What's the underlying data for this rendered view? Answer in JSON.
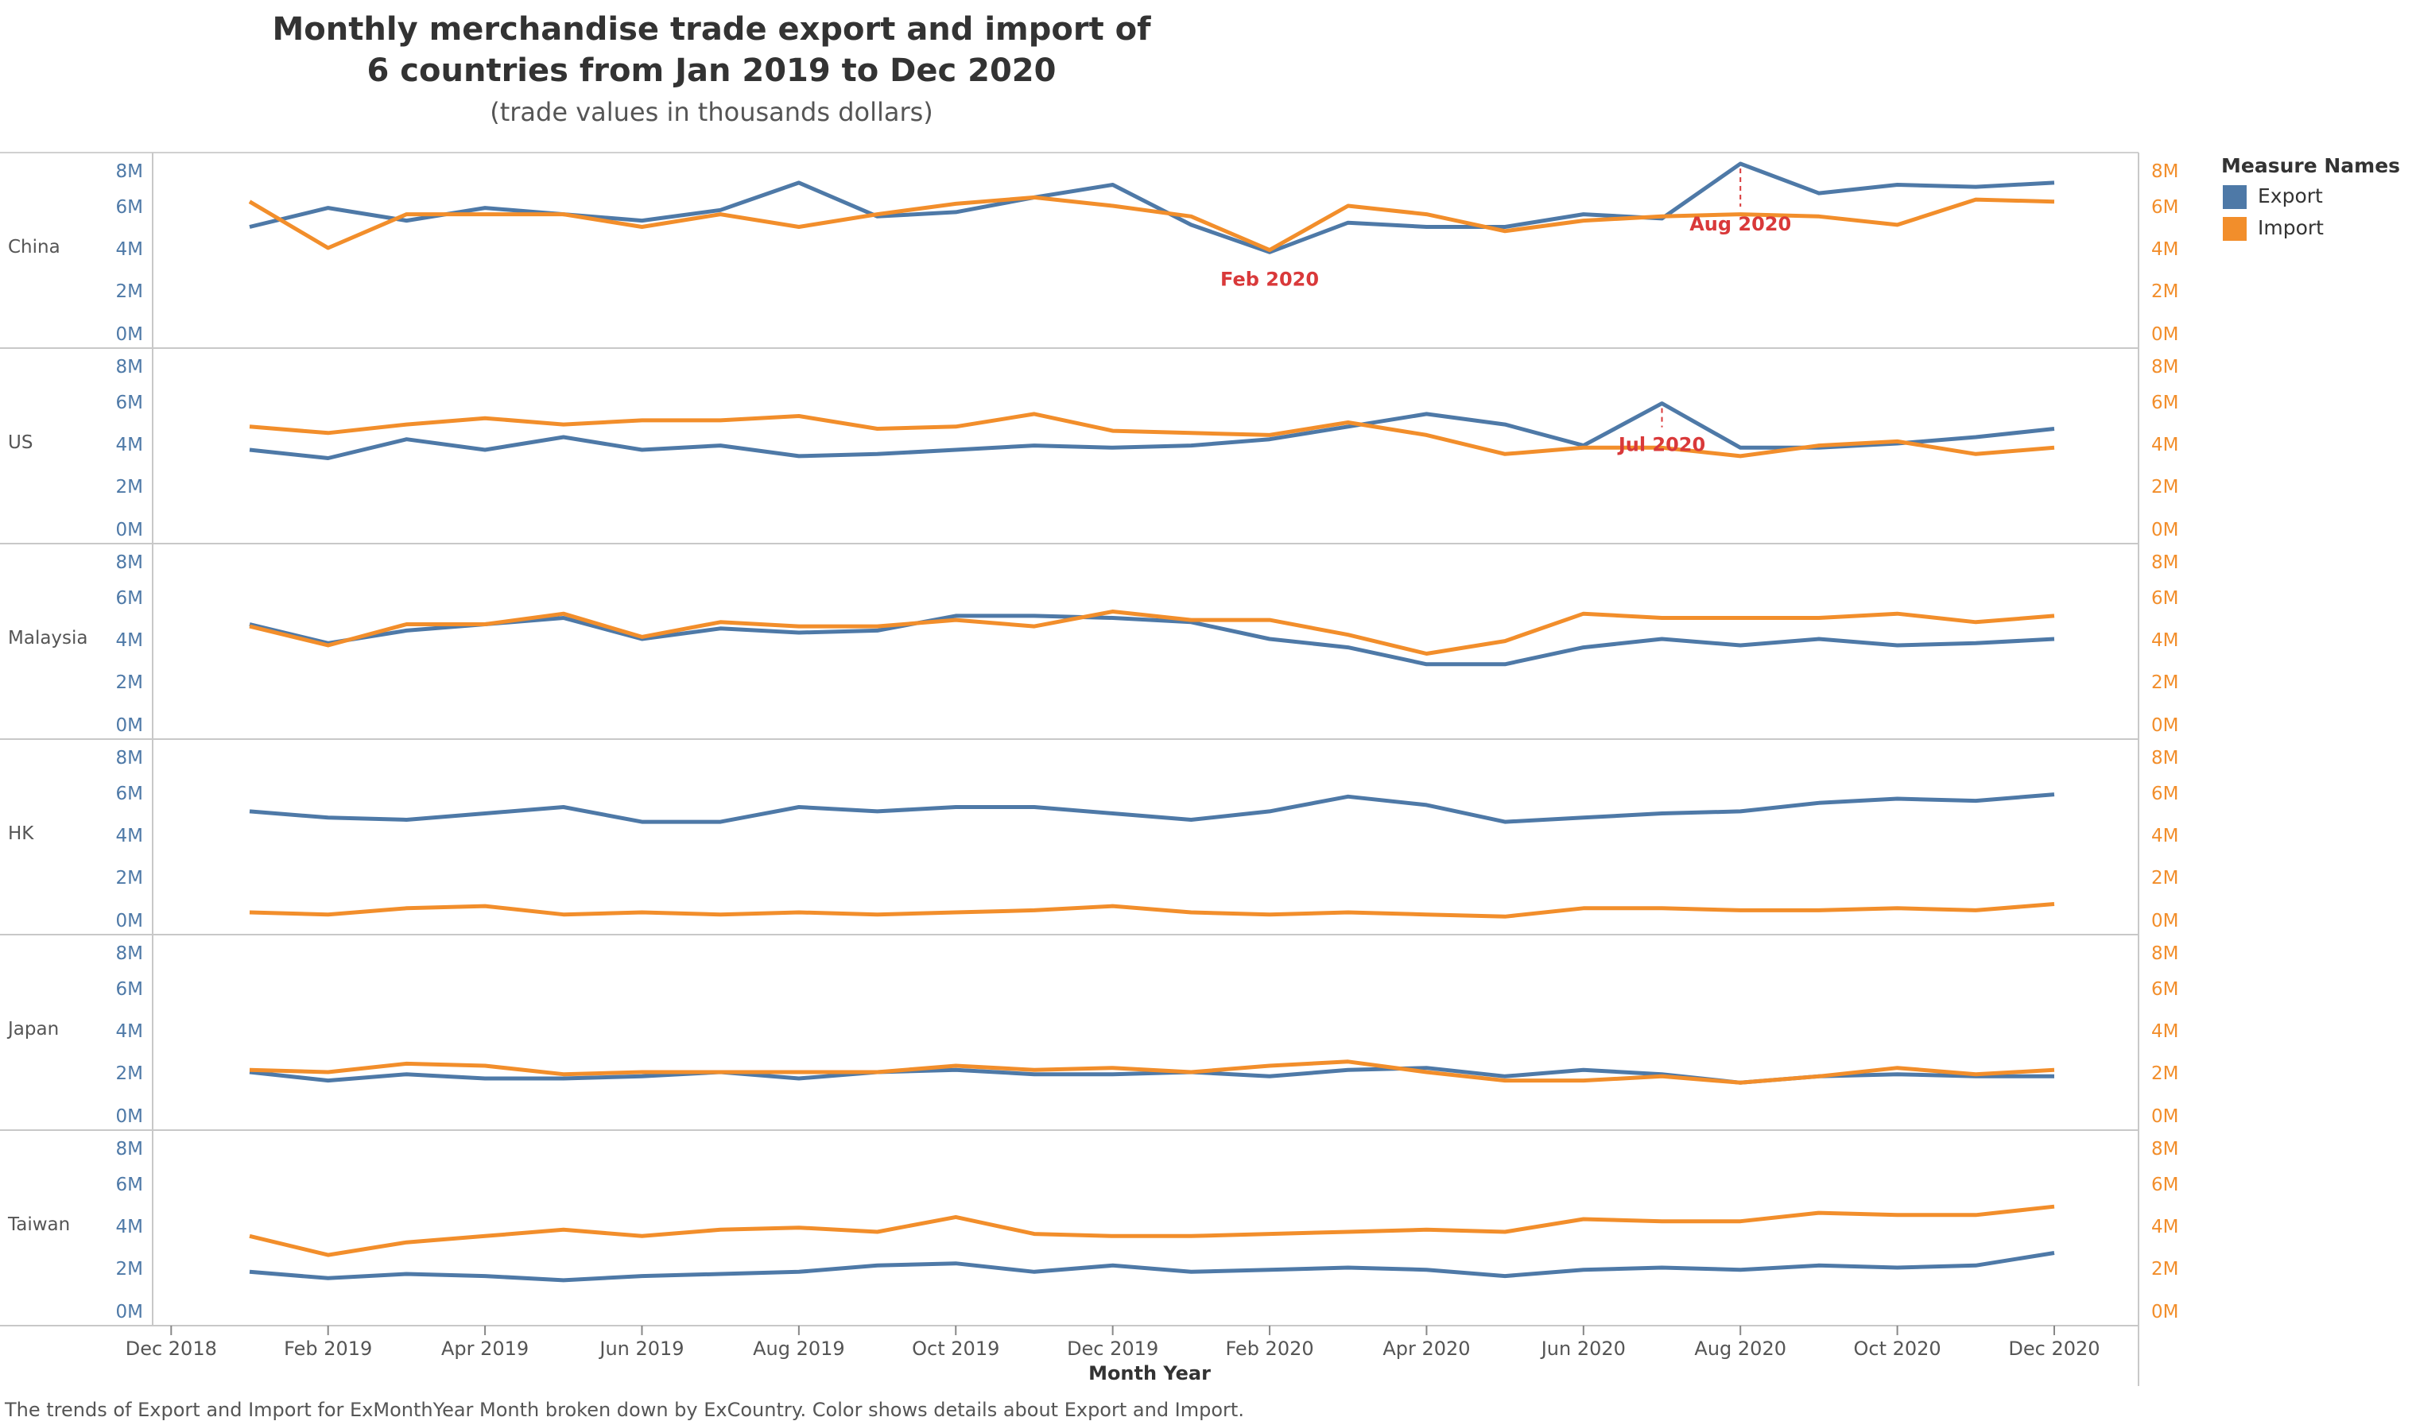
{
  "title_line1": "Monthly merchandise trade export and import of",
  "title_line2": "6 countries from Jan 2019 to Dec 2020",
  "subtitle": "(trade values in thousands dollars)",
  "legend": {
    "title": "Measure Names",
    "items": [
      {
        "label": "Export",
        "color": "#4e79a7"
      },
      {
        "label": "Import",
        "color": "#f28e2b"
      }
    ]
  },
  "caption": "The trends of Export and Import for ExMonthYear Month broken down by ExCountry.  Color shows details about Export and Import.",
  "chart_data": {
    "type": "line",
    "xlabel": "Month Year",
    "x_ticks": [
      "Dec 2018",
      "Feb 2019",
      "Apr 2019",
      "Jun 2019",
      "Aug 2019",
      "Oct 2019",
      "Dec 2019",
      "Feb 2020",
      "Apr 2020",
      "Jun 2020",
      "Aug 2020",
      "Oct 2020",
      "Dec 2020"
    ],
    "y_ticks": [
      "0M",
      "2M",
      "4M",
      "6M",
      "8M"
    ],
    "ylim": [
      0,
      8
    ],
    "unit": "M (millions of thousand dollars)",
    "months": [
      "Jan 2019",
      "Feb 2019",
      "Mar 2019",
      "Apr 2019",
      "May 2019",
      "Jun 2019",
      "Jul 2019",
      "Aug 2019",
      "Sep 2019",
      "Oct 2019",
      "Nov 2019",
      "Dec 2019",
      "Jan 2020",
      "Feb 2020",
      "Mar 2020",
      "Apr 2020",
      "May 2020",
      "Jun 2020",
      "Jul 2020",
      "Aug 2020",
      "Sep 2020",
      "Oct 2020",
      "Nov 2020",
      "Dec 2020"
    ],
    "panels": [
      {
        "country": "China",
        "export": [
          5.0,
          5.9,
          5.3,
          5.9,
          5.6,
          5.3,
          5.8,
          7.1,
          5.5,
          5.7,
          6.4,
          7.0,
          5.1,
          3.8,
          5.2,
          5.0,
          5.0,
          5.6,
          5.4,
          8.0,
          6.6,
          7.0,
          6.9,
          7.1
        ],
        "import": [
          6.2,
          4.0,
          5.6,
          5.6,
          5.6,
          5.0,
          5.6,
          5.0,
          5.6,
          6.1,
          6.4,
          6.0,
          5.5,
          3.9,
          6.0,
          5.6,
          4.8,
          5.3,
          5.5,
          5.6,
          5.5,
          5.1,
          6.3,
          6.2
        ]
      },
      {
        "country": "US",
        "export": [
          3.7,
          3.3,
          4.2,
          3.7,
          4.3,
          3.7,
          3.9,
          3.4,
          3.5,
          3.7,
          3.9,
          3.8,
          3.9,
          4.2,
          4.8,
          5.4,
          4.9,
          3.9,
          5.9,
          3.8,
          3.8,
          4.0,
          4.3,
          4.7
        ],
        "import": [
          4.8,
          4.5,
          4.9,
          5.2,
          4.9,
          5.1,
          5.1,
          5.3,
          4.7,
          4.8,
          5.4,
          4.6,
          4.5,
          4.4,
          5.0,
          4.4,
          3.5,
          3.8,
          3.8,
          3.4,
          3.9,
          4.1,
          3.5,
          3.8
        ]
      },
      {
        "country": "Malaysia",
        "export": [
          4.7,
          3.8,
          4.4,
          4.7,
          5.0,
          4.0,
          4.5,
          4.3,
          4.4,
          5.1,
          5.1,
          5.0,
          4.8,
          4.0,
          3.6,
          2.8,
          2.8,
          3.6,
          4.0,
          3.7,
          4.0,
          3.7,
          3.8,
          4.0
        ],
        "import": [
          4.6,
          3.7,
          4.7,
          4.7,
          5.2,
          4.1,
          4.8,
          4.6,
          4.6,
          4.9,
          4.6,
          5.3,
          4.9,
          4.9,
          4.2,
          3.3,
          3.9,
          5.2,
          5.0,
          5.0,
          5.0,
          5.2,
          4.8,
          5.1
        ]
      },
      {
        "country": "HK",
        "export": [
          5.1,
          4.8,
          4.7,
          5.0,
          5.3,
          4.6,
          4.6,
          5.3,
          5.1,
          5.3,
          5.3,
          5.0,
          4.7,
          5.1,
          5.8,
          5.4,
          4.6,
          4.8,
          5.0,
          5.1,
          5.5,
          5.7,
          5.6,
          5.9
        ],
        "import": [
          0.3,
          0.2,
          0.5,
          0.6,
          0.2,
          0.3,
          0.2,
          0.3,
          0.2,
          0.3,
          0.4,
          0.6,
          0.3,
          0.2,
          0.3,
          0.2,
          0.1,
          0.5,
          0.5,
          0.4,
          0.4,
          0.5,
          0.4,
          0.7
        ]
      },
      {
        "country": "Japan",
        "export": [
          2.0,
          1.6,
          1.9,
          1.7,
          1.7,
          1.8,
          2.0,
          1.7,
          2.0,
          2.1,
          1.9,
          1.9,
          2.0,
          1.8,
          2.1,
          2.2,
          1.8,
          2.1,
          1.9,
          1.5,
          1.8,
          1.9,
          1.8,
          1.8
        ],
        "import": [
          2.1,
          2.0,
          2.4,
          2.3,
          1.9,
          2.0,
          2.0,
          2.0,
          2.0,
          2.3,
          2.1,
          2.2,
          2.0,
          2.3,
          2.5,
          2.0,
          1.6,
          1.6,
          1.8,
          1.5,
          1.8,
          2.2,
          1.9,
          2.1
        ]
      },
      {
        "country": "Taiwan",
        "export": [
          1.8,
          1.5,
          1.7,
          1.6,
          1.4,
          1.6,
          1.7,
          1.8,
          2.1,
          2.2,
          1.8,
          2.1,
          1.8,
          1.9,
          2.0,
          1.9,
          1.6,
          1.9,
          2.0,
          1.9,
          2.1,
          2.0,
          2.1,
          2.7
        ],
        "import": [
          3.5,
          2.6,
          3.2,
          3.5,
          3.8,
          3.5,
          3.8,
          3.9,
          3.7,
          4.4,
          3.6,
          3.5,
          3.5,
          3.6,
          3.7,
          3.8,
          3.7,
          4.3,
          4.2,
          4.2,
          4.6,
          4.5,
          4.5,
          4.9
        ]
      }
    ],
    "annotations": [
      {
        "panel": "China",
        "label": "Feb 2020",
        "month": "Feb 2020",
        "series": "export"
      },
      {
        "panel": "China",
        "label": "Aug 2020",
        "month": "Aug 2020",
        "series": "export"
      },
      {
        "panel": "US",
        "label": "Jul 2020",
        "month": "Jul 2020",
        "series": "export"
      }
    ],
    "annotation_color": "#d9393a"
  }
}
